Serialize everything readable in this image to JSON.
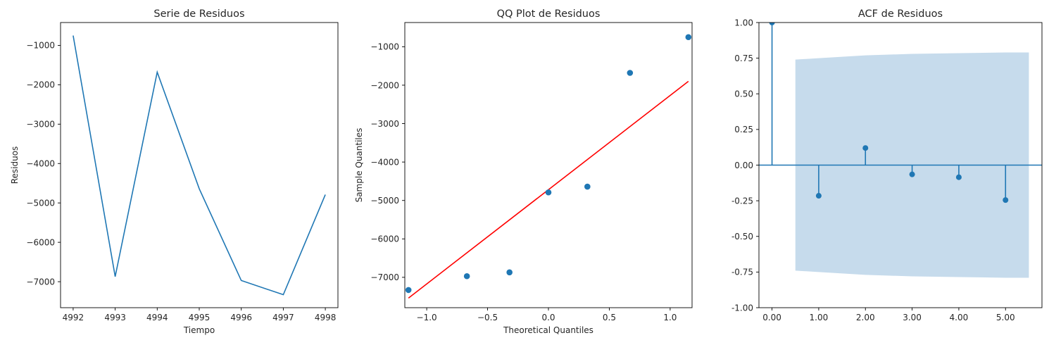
{
  "chart_data": [
    {
      "type": "line",
      "title": "Serie de Residuos",
      "xlabel": "Tiempo",
      "ylabel": "Residuos",
      "x": [
        4992,
        4993,
        4994,
        4995,
        4996,
        4997,
        4998
      ],
      "y": [
        -750,
        -6870,
        -1680,
        -4640,
        -6970,
        -7330,
        -4790
      ],
      "xlim": [
        4991.7,
        4998.3
      ],
      "ylim": [
        -7660,
        -420
      ],
      "xticks": [
        4992,
        4993,
        4994,
        4995,
        4996,
        4997,
        4998
      ],
      "yticks": [
        -7000,
        -6000,
        -5000,
        -4000,
        -3000,
        -2000,
        -1000
      ],
      "color": "#1f77b4",
      "grid": false
    },
    {
      "type": "scatter",
      "title": "QQ Plot de Residuos",
      "xlabel": "Theoretical Quantiles",
      "ylabel": "Sample Quantiles",
      "points": {
        "x": [
          -1.15,
          -0.67,
          -0.32,
          0.0,
          0.32,
          0.67,
          1.15
        ],
        "y": [
          -7330,
          -6970,
          -6870,
          -4790,
          -4640,
          -1680,
          -750
        ]
      },
      "reference_line": {
        "x": [
          -1.15,
          1.15
        ],
        "y": [
          -7540,
          -1900
        ]
      },
      "xlim": [
        -1.18,
        1.18
      ],
      "ylim": [
        -7790,
        -370
      ],
      "xticks": [
        -1.0,
        -0.5,
        0.0,
        0.5,
        1.0
      ],
      "yticks": [
        -7000,
        -6000,
        -5000,
        -4000,
        -3000,
        -2000,
        -1000
      ],
      "marker_color": "#1f77b4",
      "line_color": "#ff0000",
      "grid": false
    },
    {
      "type": "stem",
      "title": "ACF de Residuos",
      "lags": [
        0,
        1,
        2,
        3,
        4,
        5
      ],
      "values": [
        1.0,
        -0.215,
        0.12,
        -0.065,
        -0.085,
        -0.245
      ],
      "confidence_band": {
        "x": [
          0.5,
          1,
          2,
          3,
          4,
          5,
          5.5
        ],
        "upper": [
          0.74,
          0.75,
          0.77,
          0.78,
          0.785,
          0.79,
          0.79
        ],
        "lower": [
          -0.74,
          -0.75,
          -0.77,
          -0.78,
          -0.785,
          -0.79,
          -0.79
        ]
      },
      "xlim": [
        -0.28,
        5.78
      ],
      "ylim": [
        -1.0,
        1.0
      ],
      "xticks": [
        0,
        1,
        2,
        3,
        4,
        5
      ],
      "yticks": [
        -1.0,
        -0.75,
        -0.5,
        -0.25,
        0.0,
        0.25,
        0.5,
        0.75,
        1.0
      ],
      "color": "#1f77b4",
      "band_color": "#c6dbec",
      "grid": false
    }
  ]
}
